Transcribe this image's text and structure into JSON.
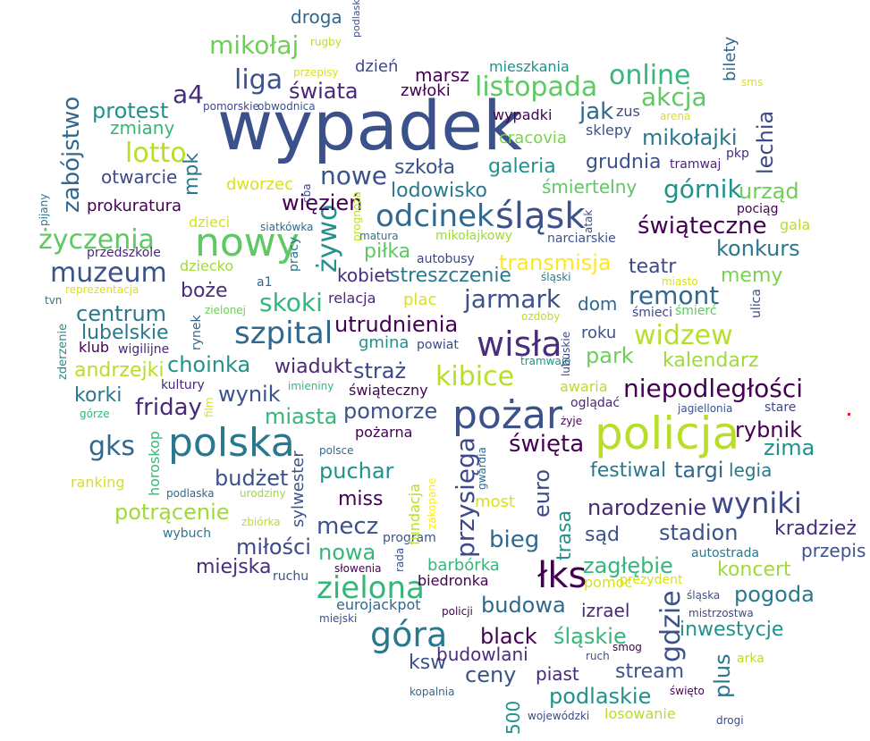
{
  "words": [
    {
      "text": "wypadek",
      "color": "#3b518b"
    },
    {
      "text": "policja",
      "color": "#b8de29"
    },
    {
      "text": "polska",
      "color": "#2a788e"
    },
    {
      "text": "nowy",
      "color": "#5ec962"
    },
    {
      "text": "pożar",
      "color": "#3b528b"
    },
    {
      "text": "wisła",
      "color": "#472d7b"
    },
    {
      "text": "odcinek",
      "color": "#31688e"
    },
    {
      "text": "śląsk",
      "color": "#3b528b"
    },
    {
      "text": "szpital",
      "color": "#31688e"
    },
    {
      "text": "łks",
      "color": "#440154"
    },
    {
      "text": "góra",
      "color": "#2a788e"
    },
    {
      "text": "zielona",
      "color": "#35b779"
    },
    {
      "text": "wyniki",
      "color": "#3e4989"
    },
    {
      "text": "muzeum",
      "color": "#3b528b"
    },
    {
      "text": "gks",
      "color": "#31688e"
    },
    {
      "text": "liga",
      "color": "#3b528b"
    },
    {
      "text": "listopada",
      "color": "#5ec962"
    },
    {
      "text": "online",
      "color": "#35b779"
    },
    {
      "text": "górnik",
      "color": "#21918c"
    },
    {
      "text": "lotto",
      "color": "#b8de29"
    },
    {
      "text": "życzenia",
      "color": "#5ec962"
    },
    {
      "text": "kibice",
      "color": "#b8de29"
    },
    {
      "text": "jarmark",
      "color": "#3b528b"
    },
    {
      "text": "widzew",
      "color": "#b8de29"
    },
    {
      "text": "niepodległości",
      "color": "#440154"
    },
    {
      "text": "remont",
      "color": "#31688e"
    },
    {
      "text": "skoki",
      "color": "#35b779"
    },
    {
      "text": "nowe",
      "color": "#3b528b"
    },
    {
      "text": "świąteczne",
      "color": "#440154"
    },
    {
      "text": "mikołaj",
      "color": "#6ece58"
    },
    {
      "text": "a4",
      "color": "#472d7b"
    },
    {
      "text": "świata",
      "color": "#482878"
    },
    {
      "text": "akcja",
      "color": "#5ec962"
    },
    {
      "text": "jak",
      "color": "#31688e"
    },
    {
      "text": "mikołajki",
      "color": "#2a788e"
    },
    {
      "text": "urząd",
      "color": "#6ece58"
    },
    {
      "text": "lechia",
      "color": "#3e4989"
    },
    {
      "text": "konkurs",
      "color": "#2a788e"
    },
    {
      "text": "żywo",
      "color": "#21918c"
    },
    {
      "text": "więzień",
      "color": "#440154"
    },
    {
      "text": "zabójstwo",
      "color": "#31688e"
    },
    {
      "text": "mpk",
      "color": "#2a788e"
    },
    {
      "text": "protest",
      "color": "#21918c"
    },
    {
      "text": "szkoła",
      "color": "#3b528b"
    },
    {
      "text": "galeria",
      "color": "#21918c"
    },
    {
      "text": "grudnia",
      "color": "#3b528b"
    },
    {
      "text": "lodowisko",
      "color": "#2a788e"
    },
    {
      "text": "transmisja",
      "color": "#fde725"
    },
    {
      "text": "piłka",
      "color": "#5ec962"
    },
    {
      "text": "kobiet",
      "color": "#472d7b"
    },
    {
      "text": "streszczenie",
      "color": "#2a788e"
    },
    {
      "text": "teatr",
      "color": "#3e4989"
    },
    {
      "text": "memy",
      "color": "#7ad151"
    },
    {
      "text": "centrum",
      "color": "#2a788e"
    },
    {
      "text": "boże",
      "color": "#472d7b"
    },
    {
      "text": "utrudnienia",
      "color": "#440154"
    },
    {
      "text": "lubelskie",
      "color": "#2a788e"
    },
    {
      "text": "choinka",
      "color": "#21918c"
    },
    {
      "text": "wiadukt",
      "color": "#482878"
    },
    {
      "text": "straż",
      "color": "#3e4989"
    },
    {
      "text": "andrzejki",
      "color": "#b8de29"
    },
    {
      "text": "wynik",
      "color": "#3b528b"
    },
    {
      "text": "miasta",
      "color": "#35b779"
    },
    {
      "text": "pomorze",
      "color": "#3b528b"
    },
    {
      "text": "park",
      "color": "#6ece58"
    },
    {
      "text": "kalendarz",
      "color": "#a0da39"
    },
    {
      "text": "korki",
      "color": "#2a788e"
    },
    {
      "text": "friday",
      "color": "#482878"
    },
    {
      "text": "rybnik",
      "color": "#440154"
    },
    {
      "text": "zima",
      "color": "#21918c"
    },
    {
      "text": "przysięga",
      "color": "#3e4989"
    },
    {
      "text": "święta",
      "color": "#440154"
    },
    {
      "text": "euro",
      "color": "#3e4989"
    },
    {
      "text": "festiwal",
      "color": "#2a788e"
    },
    {
      "text": "targi",
      "color": "#31688e"
    },
    {
      "text": "legia",
      "color": "#2a788e"
    },
    {
      "text": "budżet",
      "color": "#3b528b"
    },
    {
      "text": "puchar",
      "color": "#21918c"
    },
    {
      "text": "miss",
      "color": "#440154"
    },
    {
      "text": "potrącenie",
      "color": "#a0da39"
    },
    {
      "text": "narodzenie",
      "color": "#482878"
    },
    {
      "text": "mecz",
      "color": "#3b528b"
    },
    {
      "text": "bieg",
      "color": "#31688e"
    },
    {
      "text": "stadion",
      "color": "#3b528b"
    },
    {
      "text": "kradzież",
      "color": "#472d7b"
    },
    {
      "text": "nowa",
      "color": "#35b779"
    },
    {
      "text": "miłości",
      "color": "#3e4989"
    },
    {
      "text": "trasa",
      "color": "#21918c"
    },
    {
      "text": "sąd",
      "color": "#3b528b"
    },
    {
      "text": "przepis",
      "color": "#3b528b"
    },
    {
      "text": "miejska",
      "color": "#472d7b"
    },
    {
      "text": "zagłębie",
      "color": "#35b779"
    },
    {
      "text": "koncert",
      "color": "#a0da39"
    },
    {
      "text": "pogoda",
      "color": "#2a788e"
    },
    {
      "text": "budowa",
      "color": "#31688e"
    },
    {
      "text": "gdzie",
      "color": "#3b528b"
    },
    {
      "text": "izrael",
      "color": "#482878"
    },
    {
      "text": "black",
      "color": "#440154"
    },
    {
      "text": "śląskie",
      "color": "#35b779"
    },
    {
      "text": "inwestycje",
      "color": "#21918c"
    },
    {
      "text": "ksw",
      "color": "#3b528b"
    },
    {
      "text": "ceny",
      "color": "#3b528b"
    },
    {
      "text": "budowlani",
      "color": "#472d7b"
    },
    {
      "text": "piast",
      "color": "#482878"
    },
    {
      "text": "stream",
      "color": "#3b528b"
    },
    {
      "text": "plus",
      "color": "#2a788e"
    },
    {
      "text": "podlaskie",
      "color": "#21918c"
    },
    {
      "text": "losowanie",
      "color": "#b8de29"
    },
    {
      "text": "500",
      "color": "#21918c"
    },
    {
      "text": "droga",
      "color": "#31688e"
    },
    {
      "text": "dzień",
      "color": "#3e4989"
    },
    {
      "text": "marsz",
      "color": "#440154"
    },
    {
      "text": "mieszkania",
      "color": "#21918c"
    },
    {
      "text": "zwłoki",
      "color": "#440154"
    },
    {
      "text": "bilety",
      "color": "#31688e"
    },
    {
      "text": "zmiany",
      "color": "#35b779"
    },
    {
      "text": "otwarcie",
      "color": "#3e4989"
    },
    {
      "text": "cracovia",
      "color": "#7ad151"
    },
    {
      "text": "dworzec",
      "color": "#d8e219"
    },
    {
      "text": "wypadki",
      "color": "#440154"
    },
    {
      "text": "zus",
      "color": "#3e4989"
    },
    {
      "text": "sklepy",
      "color": "#3b528b"
    },
    {
      "text": "śmiertelny",
      "color": "#5ec962"
    },
    {
      "text": "tramwaj",
      "color": "#482878"
    },
    {
      "text": "pkp",
      "color": "#472d7b"
    },
    {
      "text": "prokuratura",
      "color": "#440154"
    },
    {
      "text": "dzieci",
      "color": "#d8e219"
    },
    {
      "text": "siatkówka",
      "color": "#31688e"
    },
    {
      "text": "przedszkole",
      "color": "#482878"
    },
    {
      "text": "dziecko",
      "color": "#a0da39"
    },
    {
      "text": "reprezentacja",
      "color": "#d8e219"
    },
    {
      "text": "a1",
      "color": "#31688e"
    },
    {
      "text": "matura",
      "color": "#2a788e"
    },
    {
      "text": "mikołajkowy",
      "color": "#a0da39"
    },
    {
      "text": "narciarskie",
      "color": "#3b528b"
    },
    {
      "text": "autobusy",
      "color": "#3e4989"
    },
    {
      "text": "śląski",
      "color": "#2a788e"
    },
    {
      "text": "pociąg",
      "color": "#440154"
    },
    {
      "text": "gala",
      "color": "#b8de29"
    },
    {
      "text": "relacja",
      "color": "#482878"
    },
    {
      "text": "plac",
      "color": "#d8e219"
    },
    {
      "text": "dom",
      "color": "#31688e"
    },
    {
      "text": "śmieci",
      "color": "#3e4989"
    },
    {
      "text": "śmierć",
      "color": "#5ec962"
    },
    {
      "text": "miasto",
      "color": "#d8e219"
    },
    {
      "text": "ozdoby",
      "color": "#b8de29"
    },
    {
      "text": "zielonej",
      "color": "#6ece58"
    },
    {
      "text": "klub",
      "color": "#440154"
    },
    {
      "text": "wigilijne",
      "color": "#482878"
    },
    {
      "text": "gmina",
      "color": "#21918c"
    },
    {
      "text": "powiat",
      "color": "#3e4989"
    },
    {
      "text": "roku",
      "color": "#3b528b"
    },
    {
      "text": "tramwaje",
      "color": "#21918c"
    },
    {
      "text": "kultury",
      "color": "#482878"
    },
    {
      "text": "imieniny",
      "color": "#35b779"
    },
    {
      "text": "świąteczny",
      "color": "#440154"
    },
    {
      "text": "awaria",
      "color": "#b8de29"
    },
    {
      "text": "oglądać",
      "color": "#482878"
    },
    {
      "text": "jagiellonia",
      "color": "#3b528b"
    },
    {
      "text": "stare",
      "color": "#3e4989"
    },
    {
      "text": "górze",
      "color": "#35b779"
    },
    {
      "text": "żyje",
      "color": "#440154"
    },
    {
      "text": "pożarna",
      "color": "#440154"
    },
    {
      "text": "polsce",
      "color": "#31688e"
    },
    {
      "text": "ranking",
      "color": "#d8e219"
    },
    {
      "text": "podlaska",
      "color": "#31688e"
    },
    {
      "text": "urodziny",
      "color": "#a0da39"
    },
    {
      "text": "most",
      "color": "#d8e219"
    },
    {
      "text": "zbiórka",
      "color": "#b8de29"
    },
    {
      "text": "program",
      "color": "#3b528b"
    },
    {
      "text": "wybuch",
      "color": "#2a788e"
    },
    {
      "text": "ruchu",
      "color": "#3b528b"
    },
    {
      "text": "słowenia",
      "color": "#440154"
    },
    {
      "text": "barbórka",
      "color": "#35b779"
    },
    {
      "text": "biedronka",
      "color": "#440154"
    },
    {
      "text": "autostrada",
      "color": "#2a788e"
    },
    {
      "text": "pomoc",
      "color": "#d8e219"
    },
    {
      "text": "prezydent",
      "color": "#d8e219"
    },
    {
      "text": "eurojackpot",
      "color": "#31688e"
    },
    {
      "text": "śląska",
      "color": "#3b528b"
    },
    {
      "text": "mistrzostwa",
      "color": "#3e4989"
    },
    {
      "text": "miejski",
      "color": "#3b528b"
    },
    {
      "text": "policji",
      "color": "#440154"
    },
    {
      "text": "smog",
      "color": "#440154"
    },
    {
      "text": "ruch",
      "color": "#3b528b"
    },
    {
      "text": "arka",
      "color": "#b8de29"
    },
    {
      "text": "kopalnia",
      "color": "#31688e"
    },
    {
      "text": "wojewódzki",
      "color": "#3e4989"
    },
    {
      "text": "święto",
      "color": "#440154"
    },
    {
      "text": "drogi",
      "color": "#3e4989"
    },
    {
      "text": "przepisy",
      "color": "#d8e219"
    },
    {
      "text": "obwodnica",
      "color": "#3b528b"
    },
    {
      "text": "pomorskie",
      "color": "#3e4989"
    },
    {
      "text": "rugby",
      "color": "#b8de29"
    },
    {
      "text": "podlaski",
      "color": "#3b528b"
    },
    {
      "text": "sms",
      "color": "#d8e219"
    },
    {
      "text": "arena",
      "color": "#d8e219"
    },
    {
      "text": "pijany",
      "color": "#2a788e"
    },
    {
      "text": "cba",
      "color": "#3e4989"
    },
    {
      "text": "pracy",
      "color": "#2a788e"
    },
    {
      "text": "prognoza",
      "color": "#b8de29"
    },
    {
      "text": "atak",
      "color": "#3e4989"
    },
    {
      "text": "tvn",
      "color": "#2a788e"
    },
    {
      "text": "zderzenie",
      "color": "#21918c"
    },
    {
      "text": "rynek",
      "color": "#31688e"
    },
    {
      "text": "ulica",
      "color": "#3b528b"
    },
    {
      "text": "lubuskie",
      "color": "#3e4989"
    },
    {
      "text": "horoskop",
      "color": "#35b779"
    },
    {
      "text": "film",
      "color": "#d8e219"
    },
    {
      "text": "sylwester",
      "color": "#3b528b"
    },
    {
      "text": "fundacja",
      "color": "#b8de29"
    },
    {
      "text": "zakopane",
      "color": "#fde725"
    },
    {
      "text": "gwardia",
      "color": "#31688e"
    },
    {
      "text": "rada",
      "color": "#3b528b"
    }
  ]
}
